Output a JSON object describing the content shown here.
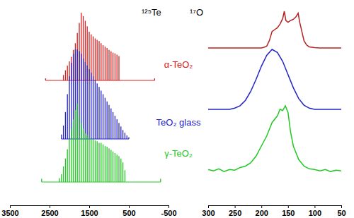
{
  "chart_data": [
    {
      "type": "stem",
      "title": "¹²⁵Te",
      "tick_labels": "x",
      "xlim": [
        3500,
        -500
      ],
      "xticks": [
        3500,
        2500,
        1500,
        500,
        -500
      ],
      "ylim": [
        0,
        1
      ],
      "series": [
        {
          "name": "α-TeO₂",
          "color": "#d42020",
          "x": [
            2600,
            2150,
            2100,
            2050,
            2000,
            1950,
            1900,
            1850,
            1800,
            1750,
            1700,
            1650,
            1600,
            1550,
            1500,
            1450,
            1400,
            1350,
            1300,
            1250,
            1200,
            1150,
            1100,
            1050,
            1000,
            950,
            900,
            850,
            800,
            750,
            -150
          ],
          "values": [
            0.03,
            0.08,
            0.15,
            0.22,
            0.28,
            0.35,
            0.45,
            0.55,
            0.7,
            0.85,
            1.0,
            0.95,
            0.88,
            0.8,
            0.72,
            0.68,
            0.65,
            0.62,
            0.6,
            0.58,
            0.55,
            0.52,
            0.5,
            0.48,
            0.45,
            0.43,
            0.41,
            0.4,
            0.38,
            0.36,
            0.03
          ]
        },
        {
          "name": "TeO₂ glass",
          "color": "#2323c8",
          "x": [
            2200,
            2150,
            2100,
            2050,
            2000,
            1950,
            1900,
            1850,
            1800,
            1750,
            1700,
            1650,
            1600,
            1550,
            1500,
            1450,
            1400,
            1350,
            1300,
            1250,
            1200,
            1150,
            1100,
            1050,
            1000,
            950,
            900,
            850,
            800,
            750,
            700,
            650,
            600,
            550,
            500
          ],
          "values": [
            0.05,
            0.15,
            0.3,
            0.5,
            0.7,
            0.85,
            0.95,
            1.0,
            1.0,
            0.98,
            0.95,
            0.9,
            0.86,
            0.82,
            0.78,
            0.74,
            0.7,
            0.66,
            0.62,
            0.58,
            0.54,
            0.5,
            0.46,
            0.42,
            0.38,
            0.34,
            0.3,
            0.26,
            0.22,
            0.18,
            0.14,
            0.1,
            0.07,
            0.04,
            0.02
          ]
        },
        {
          "name": "γ-TeO₂",
          "color": "#22c822",
          "x": [
            2700,
            2250,
            2200,
            2150,
            2100,
            2050,
            2000,
            1950,
            1900,
            1850,
            1800,
            1750,
            1700,
            1650,
            1600,
            1550,
            1500,
            1450,
            1400,
            1350,
            1300,
            1250,
            1200,
            1150,
            1100,
            1050,
            1000,
            950,
            900,
            850,
            800,
            750,
            700,
            650,
            600,
            -300
          ],
          "values": [
            0.04,
            0.05,
            0.1,
            0.2,
            0.3,
            0.42,
            0.55,
            0.68,
            0.8,
            0.92,
            1.0,
            0.85,
            0.75,
            0.68,
            0.62,
            0.6,
            0.57,
            0.55,
            0.55,
            0.53,
            0.52,
            0.5,
            0.5,
            0.48,
            0.46,
            0.45,
            0.43,
            0.41,
            0.39,
            0.37,
            0.35,
            0.33,
            0.3,
            0.25,
            0.15,
            0.04
          ]
        }
      ]
    },
    {
      "type": "line",
      "title": "¹⁷O",
      "tick_labels": "x",
      "xlim": [
        300,
        50
      ],
      "xticks": [
        300,
        250,
        200,
        150,
        100,
        50
      ],
      "ylim": [
        0,
        1
      ],
      "series": [
        {
          "color": "#b42222",
          "x": [
            300,
            280,
            260,
            240,
            220,
            200,
            195,
            190,
            185,
            180,
            175,
            170,
            165,
            160,
            157,
            154,
            150,
            145,
            140,
            135,
            131,
            128,
            124,
            120,
            115,
            110,
            100,
            90,
            70,
            50
          ],
          "values": [
            0,
            0,
            0,
            0,
            0,
            0,
            0.02,
            0.05,
            0.2,
            0.45,
            0.5,
            0.55,
            0.65,
            0.8,
            1.0,
            0.75,
            0.7,
            0.75,
            0.78,
            0.85,
            0.95,
            0.7,
            0.45,
            0.2,
            0.08,
            0.03,
            0.01,
            0,
            0,
            0
          ]
        },
        {
          "color": "#2323c8",
          "x": [
            300,
            290,
            280,
            270,
            260,
            250,
            240,
            230,
            220,
            210,
            200,
            190,
            180,
            170,
            160,
            150,
            140,
            130,
            120,
            110,
            100,
            90,
            80,
            70,
            60,
            50
          ],
          "values": [
            0,
            0,
            0,
            0,
            0,
            0.02,
            0.06,
            0.15,
            0.3,
            0.5,
            0.72,
            0.9,
            1.0,
            0.95,
            0.8,
            0.58,
            0.36,
            0.18,
            0.07,
            0.02,
            0,
            0,
            0,
            0,
            0,
            0
          ]
        },
        {
          "color": "#22c822",
          "x": [
            300,
            290,
            280,
            270,
            260,
            250,
            240,
            230,
            220,
            210,
            200,
            190,
            180,
            170,
            165,
            160,
            155,
            150,
            145,
            140,
            130,
            120,
            110,
            100,
            90,
            80,
            70,
            60,
            50
          ],
          "values": [
            0.05,
            0.03,
            0.06,
            0.02,
            0.05,
            0.04,
            0.08,
            0.1,
            0.15,
            0.25,
            0.4,
            0.55,
            0.75,
            0.85,
            0.95,
            0.93,
            1.0,
            0.9,
            0.6,
            0.4,
            0.2,
            0.1,
            0.06,
            0.05,
            0.03,
            0.05,
            0.02,
            0.04,
            0.03
          ]
        }
      ]
    }
  ]
}
